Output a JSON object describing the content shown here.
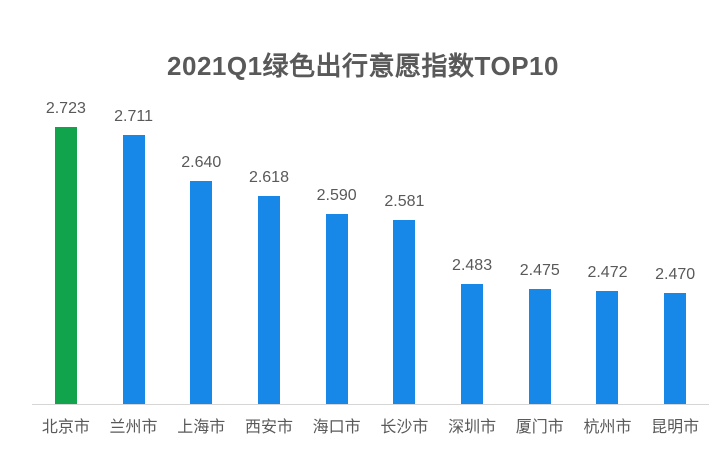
{
  "page": {
    "background": "#ffffff"
  },
  "chart_data": {
    "type": "bar",
    "title": "2021Q1绿色出行意愿指数TOP10",
    "categories": [
      "北京市",
      "兰州市",
      "上海市",
      "西安市",
      "海口市",
      "长沙市",
      "深圳市",
      "厦门市",
      "杭州市",
      "昆明市"
    ],
    "values": [
      2.723,
      2.711,
      2.64,
      2.618,
      2.59,
      2.581,
      2.483,
      2.475,
      2.472,
      2.47
    ],
    "value_label_decimals": 3,
    "xlabel": "",
    "ylabel": "",
    "ylim": [
      2.3,
      2.75
    ],
    "grid": false,
    "legend": false,
    "data_labels": true,
    "highlight_index": 0,
    "colors": {
      "bar_default": "#1787e8",
      "bar_highlight": "#12a44d",
      "axis_line": "#d6d6d6",
      "text": "#595959"
    }
  }
}
